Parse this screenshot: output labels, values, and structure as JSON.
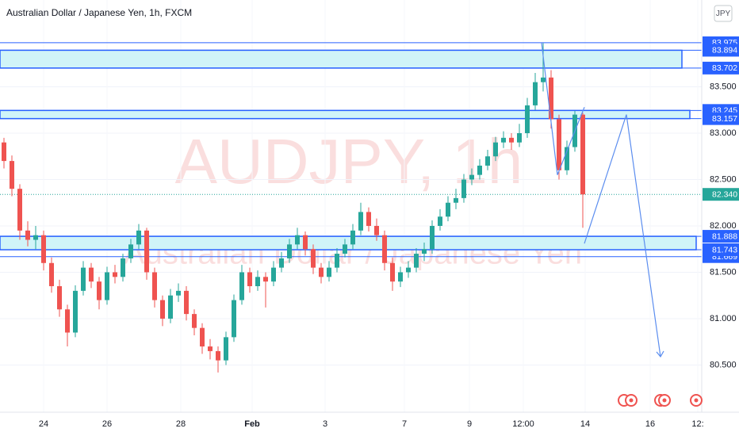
{
  "chart_data": {
    "type": "candlestick",
    "title": "Australian Dollar / Japanese Yen, 1h, FXCM",
    "currency_button": "JPY",
    "watermark": {
      "symbol": "AUDJPY, 1h",
      "name": "Australian Dollar / Japanese Yen"
    },
    "up_color": "#26a69a",
    "down_color": "#ef5350",
    "grid": true,
    "xlim": [
      0,
      88.5
    ],
    "xticks": [
      {
        "value": 5.5,
        "label": "24"
      },
      {
        "value": 13.5,
        "label": "26"
      },
      {
        "value": 22.8,
        "label": "28"
      },
      {
        "value": 31.8,
        "label": "Feb"
      },
      {
        "value": 41,
        "label": "3"
      },
      {
        "value": 51,
        "label": "7"
      },
      {
        "value": 59.2,
        "label": "9"
      },
      {
        "value": 66,
        "label": "12:00"
      },
      {
        "value": 73.8,
        "label": "14"
      },
      {
        "value": 82,
        "label": "16"
      },
      {
        "value": 88,
        "label": "12:"
      }
    ],
    "ylim": [
      79.991,
      84.436
    ],
    "yticks": [
      {
        "value": 80.5,
        "label": "80.500"
      },
      {
        "value": 81,
        "label": "81.000"
      },
      {
        "value": 81.5,
        "label": "81.500"
      },
      {
        "value": 82,
        "label": "82.000"
      },
      {
        "value": 82.5,
        "label": "82.500"
      },
      {
        "value": 83,
        "label": "83.000"
      },
      {
        "value": 83.5,
        "label": "83.500"
      }
    ],
    "candles": {
      "open": [
        82.9,
        82.7,
        82.4,
        81.95,
        81.85,
        81.9,
        81.6,
        81.35,
        81.1,
        80.85,
        81.3,
        81.55,
        81.4,
        81.2,
        81.5,
        81.45,
        81.65,
        81.8,
        81.95,
        81.5,
        81.2,
        81.0,
        81.25,
        81.3,
        81.05,
        80.9,
        80.7,
        80.65,
        80.55,
        80.8,
        81.2,
        81.5,
        81.35,
        81.45,
        81.4,
        81.55,
        81.65,
        81.8,
        81.9,
        81.75,
        81.55,
        81.45,
        81.55,
        81.7,
        81.8,
        81.95,
        82.15,
        82.0,
        81.9,
        81.6,
        81.4,
        81.5,
        81.55,
        81.7,
        81.75,
        82.0,
        82.1,
        82.25,
        82.3,
        82.5,
        82.55,
        82.65,
        82.75,
        82.9,
        82.95,
        82.9,
        83.0,
        83.3,
        83.55,
        83.6,
        83.15,
        82.6,
        82.85,
        83.2
      ],
      "high": [
        82.95,
        82.76,
        82.45,
        82.05,
        82.0,
        81.95,
        81.66,
        81.42,
        81.15,
        81.36,
        81.62,
        81.6,
        81.45,
        81.56,
        81.58,
        81.7,
        81.86,
        82.02,
        81.98,
        81.55,
        81.25,
        81.32,
        81.38,
        81.35,
        81.1,
        80.95,
        80.78,
        80.7,
        80.86,
        81.26,
        81.58,
        81.55,
        81.52,
        81.5,
        81.62,
        81.72,
        81.86,
        81.98,
        81.94,
        81.8,
        81.6,
        81.62,
        81.76,
        81.86,
        82.02,
        82.25,
        82.2,
        82.08,
        81.95,
        81.66,
        81.56,
        81.62,
        81.76,
        81.82,
        82.06,
        82.18,
        82.32,
        82.4,
        82.56,
        82.62,
        82.72,
        82.82,
        82.96,
        83.02,
        83.0,
        83.1,
        83.38,
        83.65,
        83.97,
        83.68,
        83.2,
        82.92,
        83.24,
        83.22
      ],
      "low": [
        82.62,
        82.32,
        81.85,
        81.78,
        81.75,
        81.52,
        81.28,
        81.02,
        80.7,
        80.8,
        81.25,
        81.33,
        81.1,
        81.15,
        81.38,
        81.4,
        81.6,
        81.75,
        81.42,
        81.12,
        80.92,
        80.95,
        81.18,
        80.98,
        80.82,
        80.62,
        80.56,
        80.42,
        80.5,
        80.75,
        81.15,
        81.28,
        81.3,
        81.12,
        81.35,
        81.5,
        81.6,
        81.75,
        81.68,
        81.48,
        81.38,
        81.4,
        81.5,
        81.66,
        81.75,
        81.9,
        81.94,
        81.84,
        81.52,
        81.3,
        81.34,
        81.44,
        81.5,
        81.62,
        81.7,
        81.95,
        82.05,
        82.18,
        82.25,
        82.44,
        82.5,
        82.6,
        82.7,
        82.84,
        82.82,
        82.85,
        82.95,
        83.25,
        83.45,
        83.05,
        82.5,
        82.55,
        82.8,
        81.98
      ],
      "close": [
        82.7,
        82.4,
        81.95,
        81.85,
        81.9,
        81.6,
        81.35,
        81.1,
        80.85,
        81.3,
        81.55,
        81.4,
        81.2,
        81.5,
        81.45,
        81.65,
        81.8,
        81.95,
        81.5,
        81.2,
        81.0,
        81.25,
        81.3,
        81.05,
        80.9,
        80.7,
        80.65,
        80.55,
        80.8,
        81.2,
        81.5,
        81.35,
        81.45,
        81.4,
        81.55,
        81.65,
        81.8,
        81.9,
        81.75,
        81.55,
        81.45,
        81.55,
        81.7,
        81.8,
        81.95,
        82.15,
        82.0,
        81.9,
        81.6,
        81.4,
        81.5,
        81.55,
        81.7,
        81.75,
        82.0,
        82.1,
        82.25,
        82.3,
        82.5,
        82.55,
        82.65,
        82.75,
        82.9,
        82.95,
        82.9,
        83.0,
        83.3,
        83.55,
        83.6,
        83.15,
        82.6,
        82.85,
        83.2,
        82.34
      ]
    },
    "current_price": {
      "value": 82.34,
      "label": "82.340"
    },
    "level_color": "#2962ff",
    "zone_color": "#d0f4f8",
    "lines": [
      {
        "value": 83.975,
        "label": "83.975"
      },
      {
        "value": 81.669,
        "label": "81.669"
      }
    ],
    "zones": [
      {
        "top": {
          "value": 83.894,
          "label": "83.894"
        },
        "bottom": {
          "value": 83.702,
          "label": "83.702"
        }
      },
      {
        "top": {
          "value": 83.245,
          "label": "83.245"
        },
        "bottom": {
          "value": 83.157,
          "label": "83.157"
        }
      },
      {
        "top": {
          "value": 81.888,
          "label": "81.888"
        },
        "bottom": {
          "value": 81.743,
          "label": "81.743"
        }
      }
    ],
    "projections": [
      {
        "x": [
          68.3,
          70.3,
          73.7
        ],
        "y": [
          83.975,
          82.55,
          83.28
        ]
      },
      {
        "x": [
          73.7,
          79.0,
          83.3
        ],
        "y": [
          81.81,
          83.2,
          80.59
        ]
      }
    ]
  }
}
